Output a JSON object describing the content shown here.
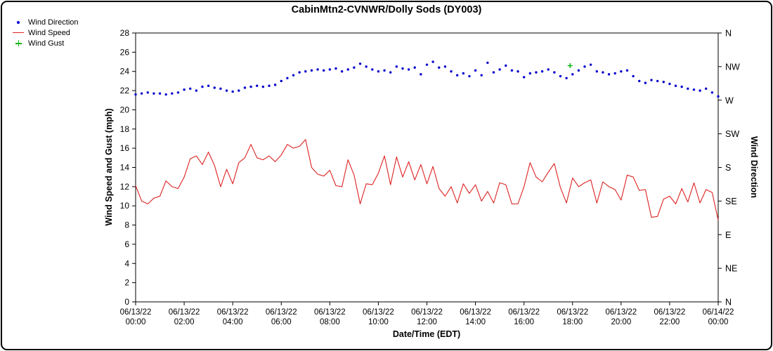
{
  "page": {
    "title": "CabinMtn2-CVNWR/Dolly Sods (DY003)"
  },
  "legend": {
    "items": [
      {
        "label": "Wind Direction",
        "marker": "dot-icon",
        "color": "#0000cd"
      },
      {
        "label": "Wind Speed",
        "marker": "line-icon",
        "color": "#dd2222"
      },
      {
        "label": "Wind Gust",
        "marker": "plus-icon",
        "color": "#00b400"
      }
    ]
  },
  "axes": {
    "left_label": "Wind Speed and Gust (mph)",
    "right_label": "Wind Direction",
    "x_label": "Date/Time (EDT)"
  },
  "chart_data": {
    "type": "line",
    "title": "CabinMtn2-CVNWR/Dolly Sods (DY003)",
    "xlabel": "Date/Time (EDT)",
    "ylabel_left": "Wind Speed and Gust (mph)",
    "ylabel_right": "Wind Direction",
    "ylim": [
      0,
      28
    ],
    "ytick_step": 2,
    "grid": false,
    "legend_position": "top-left",
    "x_start_hour": 0,
    "x_end_hour": 24,
    "x_interval_hours": 0.25,
    "x_ticks": [
      {
        "hour": 0,
        "line1": "06/13/22",
        "line2": "00:00"
      },
      {
        "hour": 2,
        "line1": "06/13/22",
        "line2": "02:00"
      },
      {
        "hour": 4,
        "line1": "06/13/22",
        "line2": "04:00"
      },
      {
        "hour": 6,
        "line1": "06/13/22",
        "line2": "06:00"
      },
      {
        "hour": 8,
        "line1": "06/13/22",
        "line2": "08:00"
      },
      {
        "hour": 10,
        "line1": "06/13/22",
        "line2": "10:00"
      },
      {
        "hour": 12,
        "line1": "06/13/22",
        "line2": "12:00"
      },
      {
        "hour": 14,
        "line1": "06/13/22",
        "line2": "14:00"
      },
      {
        "hour": 16,
        "line1": "06/13/22",
        "line2": "16:00"
      },
      {
        "hour": 18,
        "line1": "06/13/22",
        "line2": "18:00"
      },
      {
        "hour": 20,
        "line1": "06/13/22",
        "line2": "20:00"
      },
      {
        "hour": 22,
        "line1": "06/13/22",
        "line2": "22:00"
      },
      {
        "hour": 24,
        "line1": "06/14/22",
        "line2": "00:00"
      }
    ],
    "right_ticks": [
      {
        "value": 28,
        "label": "N"
      },
      {
        "value": 24.5,
        "label": "NW"
      },
      {
        "value": 21,
        "label": "W"
      },
      {
        "value": 17.5,
        "label": "SW"
      },
      {
        "value": 14,
        "label": "S"
      },
      {
        "value": 10.5,
        "label": "SE"
      },
      {
        "value": 7,
        "label": "E"
      },
      {
        "value": 3.5,
        "label": "NE"
      },
      {
        "value": 0,
        "label": "N"
      }
    ],
    "series": [
      {
        "name": "Wind Direction",
        "type": "scatter",
        "color": "#0000cd",
        "note": "plotted against right axis; values expressed on 0-28 left scale (W=21, NW=24.5)",
        "values": [
          21.6,
          21.7,
          21.8,
          21.7,
          21.7,
          21.6,
          21.7,
          21.8,
          22.1,
          22.2,
          22.0,
          22.4,
          22.5,
          22.3,
          22.2,
          22.0,
          21.9,
          22.0,
          22.3,
          22.4,
          22.5,
          22.4,
          22.5,
          22.6,
          23.0,
          23.3,
          23.6,
          23.9,
          24.0,
          24.1,
          24.2,
          24.1,
          24.2,
          24.3,
          24.0,
          24.2,
          24.4,
          24.8,
          24.5,
          24.2,
          24.0,
          24.1,
          23.9,
          24.5,
          24.3,
          24.2,
          24.4,
          23.7,
          24.7,
          25.0,
          24.4,
          24.5,
          24.0,
          23.6,
          23.8,
          23.5,
          24.1,
          23.6,
          24.9,
          23.9,
          24.2,
          24.6,
          24.1,
          24.0,
          23.4,
          23.8,
          23.9,
          24.0,
          24.2,
          23.9,
          23.5,
          23.3,
          23.7,
          24.1,
          24.5,
          24.7,
          24.0,
          23.9,
          23.7,
          23.8,
          24.0,
          24.1,
          23.5,
          23.0,
          22.8,
          23.1,
          23.0,
          22.9,
          22.7,
          22.5,
          22.4,
          22.2,
          22.1,
          22.0,
          22.2,
          21.8,
          21.4
        ]
      },
      {
        "name": "Wind Speed",
        "type": "line",
        "color": "#dd2222",
        "units": "mph",
        "values": [
          12.1,
          10.5,
          10.2,
          10.8,
          11.0,
          12.6,
          12.0,
          11.8,
          13.0,
          14.9,
          15.2,
          14.3,
          15.6,
          14.2,
          12.0,
          13.8,
          12.3,
          14.5,
          15.0,
          16.4,
          15.0,
          14.8,
          15.2,
          14.6,
          15.3,
          16.4,
          16.0,
          16.2,
          16.9,
          14.0,
          13.3,
          13.1,
          13.7,
          12.1,
          12.0,
          14.8,
          13.2,
          10.2,
          12.3,
          12.2,
          13.4,
          15.2,
          12.2,
          15.1,
          13.0,
          14.6,
          12.7,
          14.3,
          12.3,
          14.1,
          11.8,
          11.0,
          12.0,
          10.3,
          12.3,
          11.3,
          12.2,
          10.5,
          11.5,
          10.3,
          12.4,
          12.2,
          10.2,
          10.2,
          12.0,
          14.5,
          13.0,
          12.5,
          13.5,
          14.4,
          11.9,
          10.3,
          12.9,
          12.0,
          12.4,
          12.7,
          10.3,
          12.5,
          12.0,
          11.7,
          10.6,
          13.2,
          13.0,
          11.6,
          11.7,
          8.8,
          8.9,
          10.7,
          11.0,
          10.2,
          11.8,
          10.4,
          12.4,
          10.3,
          11.7,
          11.4,
          8.5
        ]
      },
      {
        "name": "Wind Gust",
        "type": "plus",
        "color": "#00b400",
        "units": "mph",
        "points": [
          {
            "hour": 17.9,
            "value": 24.6
          }
        ]
      }
    ]
  }
}
